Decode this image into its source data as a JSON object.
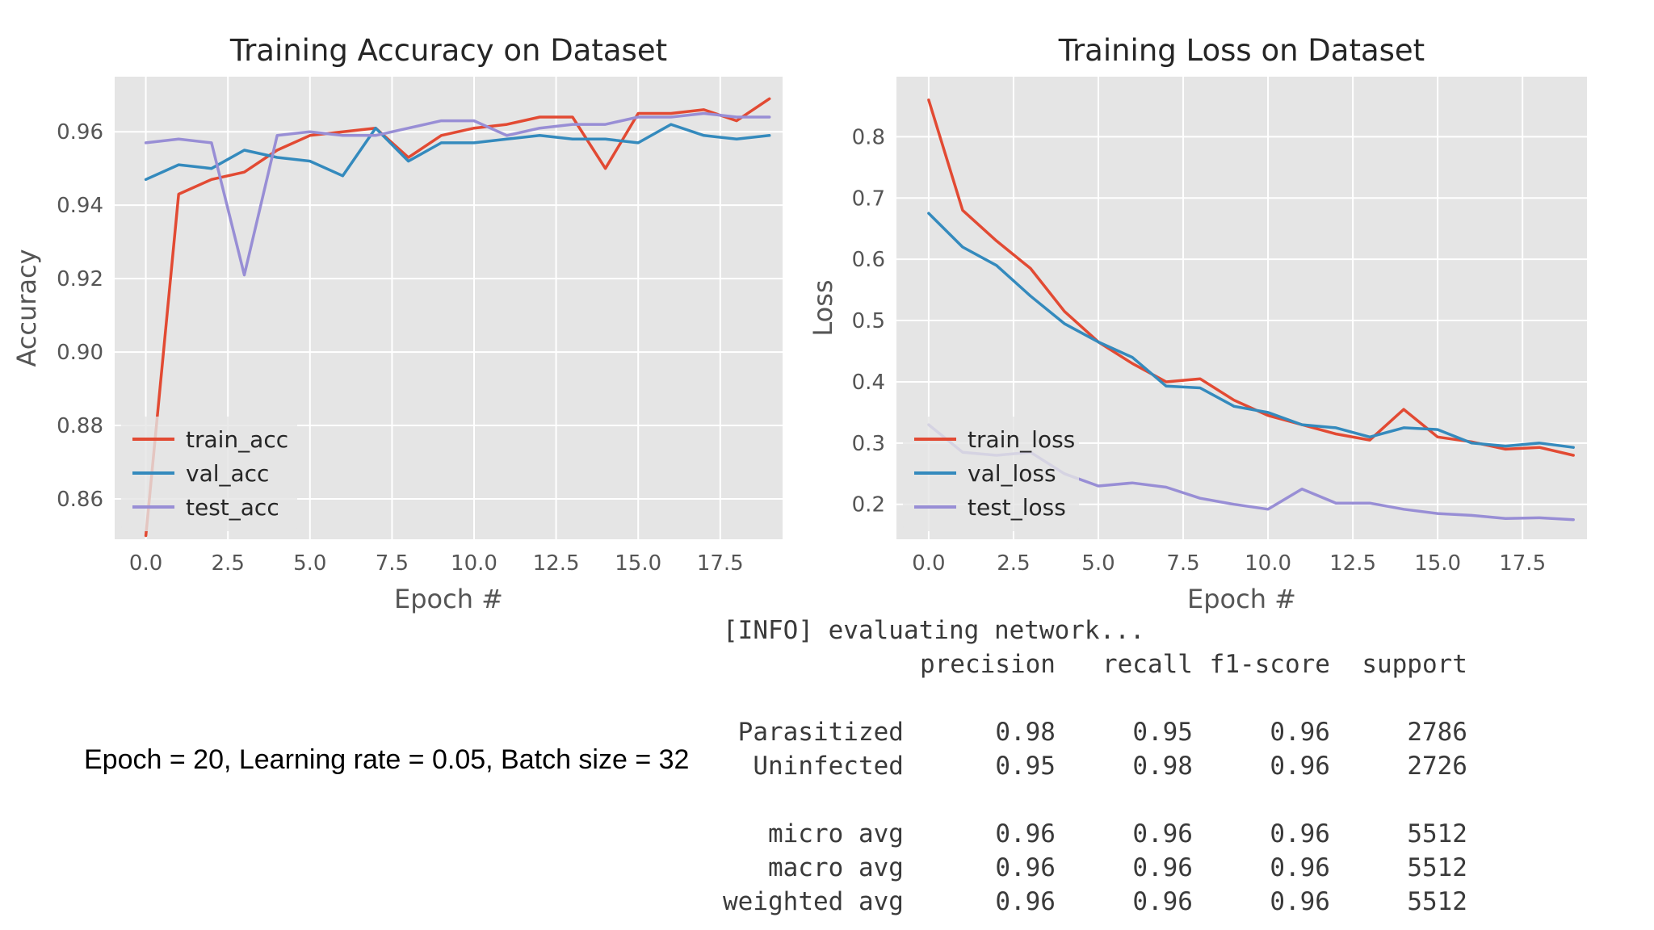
{
  "chart_data": [
    {
      "type": "line",
      "title": "Training Accuracy on Dataset",
      "xlabel": "Epoch #",
      "ylabel": "Accuracy",
      "xlim": [
        -0.95,
        19.4
      ],
      "ylim": [
        0.849,
        0.975
      ],
      "xticks": [
        0.0,
        2.5,
        5.0,
        7.5,
        10.0,
        12.5,
        15.0,
        17.5
      ],
      "xtick_labels": [
        "0.0",
        "2.5",
        "5.0",
        "7.5",
        "10.0",
        "12.5",
        "15.0",
        "17.5"
      ],
      "yticks": [
        0.86,
        0.88,
        0.9,
        0.92,
        0.94,
        0.96
      ],
      "ytick_labels": [
        "0.86",
        "0.88",
        "0.90",
        "0.92",
        "0.94",
        "0.96"
      ],
      "grid": true,
      "legend_position": "lower-left",
      "x": [
        0,
        1,
        2,
        3,
        4,
        5,
        6,
        7,
        8,
        9,
        10,
        11,
        12,
        13,
        14,
        15,
        16,
        17,
        18,
        19
      ],
      "series": [
        {
          "name": "train_acc",
          "color": "#e24a33",
          "values": [
            0.85,
            0.943,
            0.947,
            0.949,
            0.955,
            0.959,
            0.96,
            0.961,
            0.953,
            0.959,
            0.961,
            0.962,
            0.964,
            0.964,
            0.95,
            0.965,
            0.965,
            0.966,
            0.963,
            0.969
          ]
        },
        {
          "name": "val_acc",
          "color": "#348abd",
          "values": [
            0.947,
            0.951,
            0.95,
            0.955,
            0.953,
            0.952,
            0.948,
            0.961,
            0.952,
            0.957,
            0.957,
            0.958,
            0.959,
            0.958,
            0.958,
            0.957,
            0.962,
            0.959,
            0.958,
            0.959
          ]
        },
        {
          "name": "test_acc",
          "color": "#988ed5",
          "values": [
            0.957,
            0.958,
            0.957,
            0.921,
            0.959,
            0.96,
            0.959,
            0.959,
            0.961,
            0.963,
            0.963,
            0.959,
            0.961,
            0.962,
            0.962,
            0.964,
            0.964,
            0.965,
            0.964,
            0.964
          ]
        }
      ]
    },
    {
      "type": "line",
      "title": "Training Loss on Dataset",
      "xlabel": "Epoch #",
      "ylabel": "Loss",
      "xlim": [
        -0.95,
        19.4
      ],
      "ylim": [
        0.143,
        0.898
      ],
      "xticks": [
        0.0,
        2.5,
        5.0,
        7.5,
        10.0,
        12.5,
        15.0,
        17.5
      ],
      "xtick_labels": [
        "0.0",
        "2.5",
        "5.0",
        "7.5",
        "10.0",
        "12.5",
        "15.0",
        "17.5"
      ],
      "yticks": [
        0.2,
        0.3,
        0.4,
        0.5,
        0.6,
        0.7,
        0.8
      ],
      "ytick_labels": [
        "0.2",
        "0.3",
        "0.4",
        "0.5",
        "0.6",
        "0.7",
        "0.8"
      ],
      "grid": true,
      "legend_position": "lower-left",
      "x": [
        0,
        1,
        2,
        3,
        4,
        5,
        6,
        7,
        8,
        9,
        10,
        11,
        12,
        13,
        14,
        15,
        16,
        17,
        18,
        19
      ],
      "series": [
        {
          "name": "train_loss",
          "color": "#e24a33",
          "values": [
            0.86,
            0.68,
            0.63,
            0.585,
            0.515,
            0.465,
            0.43,
            0.4,
            0.405,
            0.37,
            0.345,
            0.33,
            0.315,
            0.305,
            0.355,
            0.31,
            0.302,
            0.29,
            0.293,
            0.28
          ]
        },
        {
          "name": "val_loss",
          "color": "#348abd",
          "values": [
            0.675,
            0.62,
            0.59,
            0.54,
            0.495,
            0.465,
            0.44,
            0.393,
            0.39,
            0.36,
            0.35,
            0.33,
            0.325,
            0.31,
            0.325,
            0.322,
            0.3,
            0.295,
            0.3,
            0.293
          ]
        },
        {
          "name": "test_loss",
          "color": "#988ed5",
          "values": [
            0.33,
            0.285,
            0.28,
            0.285,
            0.25,
            0.23,
            0.235,
            0.228,
            0.21,
            0.2,
            0.192,
            0.225,
            0.202,
            0.202,
            0.192,
            0.185,
            0.182,
            0.177,
            0.178,
            0.175
          ]
        }
      ]
    }
  ],
  "caption": "Epoch = 20, Learning rate = 0.05, Batch size = 32",
  "report": {
    "info_line": "[INFO] evaluating network...",
    "headers": [
      "",
      "precision",
      "recall",
      "f1-score",
      "support"
    ],
    "class_rows": [
      [
        "Parasitized",
        "0.98",
        "0.95",
        "0.96",
        "2786"
      ],
      [
        "Uninfected",
        "0.95",
        "0.98",
        "0.96",
        "2726"
      ]
    ],
    "avg_rows": [
      [
        "micro avg",
        "0.96",
        "0.96",
        "0.96",
        "5512"
      ],
      [
        "macro avg",
        "0.96",
        "0.96",
        "0.96",
        "5512"
      ],
      [
        "weighted avg",
        "0.96",
        "0.96",
        "0.96",
        "5512"
      ]
    ]
  },
  "colors": {
    "plot_background": "#e5e5e5",
    "grid": "#ffffff",
    "legend_background": "#e5e5e5"
  }
}
